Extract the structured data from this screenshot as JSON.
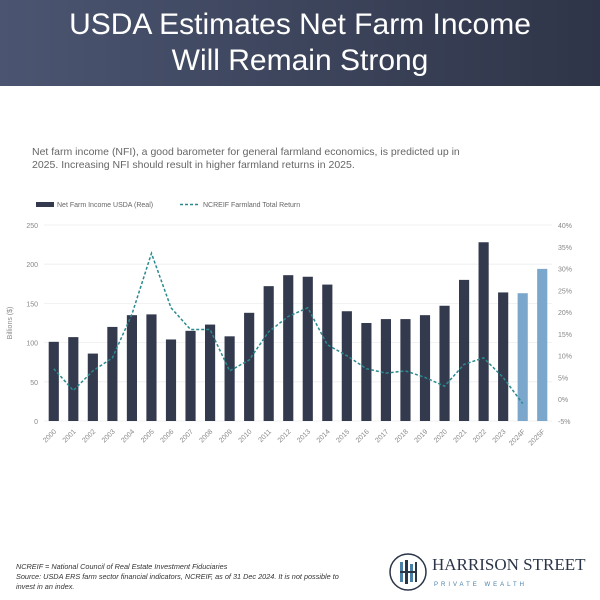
{
  "header": {
    "title_line1": "USDA Estimates Net Farm Income",
    "title_line2": "Will Remain Strong"
  },
  "intro": "Net farm income (NFI), a good barometer for general farmland economics, is predicted up in 2025. Increasing NFI should result in higher farmland returns in 2025.",
  "chart_data": {
    "type": "bar",
    "categories": [
      "2000",
      "2001",
      "2002",
      "2003",
      "2004",
      "2005",
      "2006",
      "2007",
      "2008",
      "2009",
      "2010",
      "2011",
      "2012",
      "2013",
      "2014",
      "2015",
      "2016",
      "2017",
      "2018",
      "2019",
      "2020",
      "2021",
      "2022",
      "2023",
      "2024F",
      "2025F"
    ],
    "series": [
      {
        "name": "Net Farm Income USDA (Real)",
        "type": "bar",
        "axis": "left",
        "values": [
          101,
          107,
          86,
          120,
          135,
          136,
          104,
          115,
          123,
          108,
          138,
          172,
          186,
          184,
          174,
          140,
          125,
          130,
          130,
          135,
          147,
          180,
          228,
          164,
          163,
          194
        ],
        "color": "#343a4e",
        "forecast_color": "#7ba7cc"
      },
      {
        "name": "NCREIF Farmland Total Return",
        "type": "line",
        "style": "dashed",
        "axis": "right",
        "values": [
          7,
          2,
          6.5,
          9.5,
          19.5,
          33.5,
          21,
          16,
          16,
          6.5,
          9,
          15.5,
          19,
          21,
          12.5,
          10,
          7,
          6,
          6.5,
          5,
          3,
          8,
          9.5,
          5,
          -1,
          null
        ],
        "color": "#2a8a8e"
      }
    ],
    "ylabel": "Billions ($)",
    "ylim": [
      0,
      250
    ],
    "yticks": [
      "0",
      "50",
      "100",
      "150",
      "200",
      "250"
    ],
    "y2lim": [
      -5,
      40
    ],
    "y2ticks": [
      "-5%",
      "0%",
      "5%",
      "10%",
      "15%",
      "20%",
      "25%",
      "30%",
      "35%",
      "40%"
    ],
    "grid": true,
    "legend": "top-left"
  },
  "footnote": {
    "line1": "NCREIF = National Council of Real Estate Investment Fiduciaries",
    "line2": "Source: USDA ERS farm sector financial indicators, NCREIF, as of 31 Dec 2024. It is not possible to",
    "line3": "invest in an index."
  },
  "logo": {
    "name": "HARRISON STREET",
    "sub": "PRIVATE WEALTH"
  }
}
